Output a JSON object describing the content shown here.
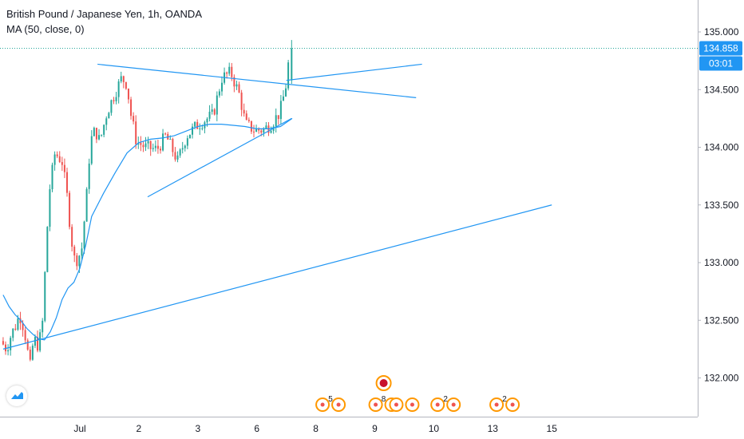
{
  "legend": {
    "symbol_line": "British Pound / Japanese Yen, 1h, OANDA",
    "indicator_line": "MA (50, close, 0)"
  },
  "colors": {
    "up": "#26a69a",
    "down": "#ef5350",
    "line": "#2196f3",
    "axis_text": "#131722",
    "badge": "#2196f3",
    "event_ring": "#ff9800"
  },
  "icons": {
    "logo": "tradingview-cloud-icon",
    "event": "economic-event-icon",
    "uk_flag": "uk-flag-icon"
  },
  "chart_data": {
    "type": "candlestick",
    "title": "British Pound / Japanese Yen, 1h, OANDA",
    "indicator": "MA (50, close, 0)",
    "y_axis_ticks": [
      "135.000",
      "134.500",
      "134.000",
      "133.500",
      "133.000",
      "132.500",
      "132.000"
    ],
    "y_tick_values": [
      135.0,
      134.5,
      134.0,
      133.5,
      133.0,
      132.5,
      132.0
    ],
    "ylim": [
      131.68,
      135.36
    ],
    "x_axis_ticks": [
      "Jul",
      "2",
      "3",
      "6",
      "8",
      "9",
      "10",
      "13",
      "15"
    ],
    "x_tick_positions": [
      0,
      1,
      2,
      3,
      4,
      5,
      6,
      7,
      8
    ],
    "last_price": "134.858",
    "last_price_value": 134.858,
    "countdown": "03:01",
    "grid": false,
    "candles_range": [
      -1.3,
      3.85
    ],
    "candle_anchors": [
      [
        -1.3,
        132.32
      ],
      [
        -1.2,
        132.25
      ],
      [
        -1.12,
        132.38
      ],
      [
        -1.05,
        132.45
      ],
      [
        -0.98,
        132.55
      ],
      [
        -0.9,
        132.42
      ],
      [
        -0.85,
        132.25
      ],
      [
        -0.8,
        132.1
      ],
      [
        -0.74,
        132.35
      ],
      [
        -0.68,
        132.28
      ],
      [
        -0.6,
        132.4
      ],
      [
        -0.48,
        133.6
      ],
      [
        -0.38,
        133.95
      ],
      [
        -0.26,
        133.88
      ],
      [
        -0.18,
        133.6
      ],
      [
        -0.1,
        133.2
      ],
      [
        -0.04,
        133.0
      ],
      [
        0.07,
        133.1
      ],
      [
        0.16,
        133.6
      ],
      [
        0.22,
        134.05
      ],
      [
        0.3,
        134.15
      ],
      [
        0.38,
        134.05
      ],
      [
        0.5,
        134.3
      ],
      [
        0.62,
        134.45
      ],
      [
        0.75,
        134.6
      ],
      [
        0.84,
        134.55
      ],
      [
        0.9,
        134.3
      ],
      [
        1.0,
        134.05
      ],
      [
        1.15,
        134.0
      ],
      [
        1.35,
        133.98
      ],
      [
        1.5,
        134.1
      ],
      [
        1.7,
        133.88
      ],
      [
        1.85,
        134.1
      ],
      [
        2.05,
        134.2
      ],
      [
        2.3,
        134.28
      ],
      [
        2.45,
        134.6
      ],
      [
        2.6,
        134.65
      ],
      [
        2.75,
        134.45
      ],
      [
        2.85,
        134.2
      ],
      [
        3.0,
        134.15
      ],
      [
        3.15,
        134.15
      ],
      [
        3.28,
        134.2
      ],
      [
        3.43,
        134.3
      ],
      [
        3.5,
        134.45
      ],
      [
        3.56,
        134.6
      ],
      [
        3.59,
        134.84
      ]
    ],
    "series": [
      {
        "name": "MA (50, close, 0)",
        "type": "line",
        "x": [
          -1.3,
          -1.2,
          -1.1,
          -1.0,
          -0.9,
          -0.8,
          -0.7,
          -0.6,
          -0.5,
          -0.4,
          -0.3,
          -0.2,
          -0.1,
          0.0,
          0.1,
          0.2,
          0.4,
          0.6,
          0.8,
          1.0,
          1.2,
          1.4,
          1.6,
          1.8,
          2.0,
          2.2,
          2.4,
          2.6,
          2.8,
          3.0,
          3.2,
          3.4,
          3.6
        ],
        "y": [
          132.72,
          132.62,
          132.55,
          132.5,
          132.43,
          132.38,
          132.34,
          132.33,
          132.4,
          132.52,
          132.68,
          132.78,
          132.83,
          132.95,
          133.15,
          133.4,
          133.6,
          133.78,
          133.95,
          134.04,
          134.07,
          134.08,
          134.1,
          134.14,
          134.18,
          134.2,
          134.2,
          134.19,
          134.18,
          134.16,
          134.16,
          134.18,
          134.25
        ]
      }
    ],
    "trendlines": [
      {
        "x": [
          0.3,
          5.7
        ],
        "y": [
          134.72,
          134.43
        ]
      },
      {
        "x": [
          1.15,
          3.59
        ],
        "y": [
          133.57,
          134.25
        ]
      },
      {
        "x": [
          -1.3,
          8.0
        ],
        "y": [
          132.25,
          133.5
        ]
      },
      {
        "x": [
          3.5,
          5.8
        ],
        "y": [
          134.58,
          134.72
        ]
      }
    ],
    "events": [
      {
        "x": 4.25,
        "count": "5",
        "flag": false
      },
      {
        "x": 5.15,
        "count": "8",
        "flag": false
      },
      {
        "x": 5.5,
        "count": "",
        "flag": true
      },
      {
        "x": 6.2,
        "count": "2",
        "flag": false
      },
      {
        "x": 7.2,
        "count": "2",
        "flag": true
      }
    ]
  }
}
